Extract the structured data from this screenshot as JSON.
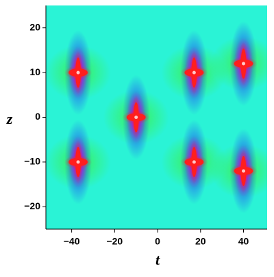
{
  "chart_data": {
    "type": "density",
    "xlabel": "t",
    "ylabel": "z",
    "x": [
      -37,
      -37,
      -10,
      17,
      17,
      40,
      40
    ],
    "y": [
      10,
      -10,
      0,
      10,
      -10,
      12,
      -12
    ],
    "xlim": [
      -52,
      51
    ],
    "ylim": [
      -25,
      25
    ],
    "xticks": [
      {
        "value": -40,
        "label": "−40"
      },
      {
        "value": -20,
        "label": "−20"
      },
      0,
      20,
      40
    ],
    "yticks": [
      {
        "value": -20,
        "label": "−20"
      },
      {
        "value": -10,
        "label": "−10"
      },
      0,
      10,
      20
    ],
    "colors": [
      "#2af3d6",
      "#3cf24a",
      "#2020ff",
      "#e000e0",
      "#ff1e1e"
    ]
  }
}
